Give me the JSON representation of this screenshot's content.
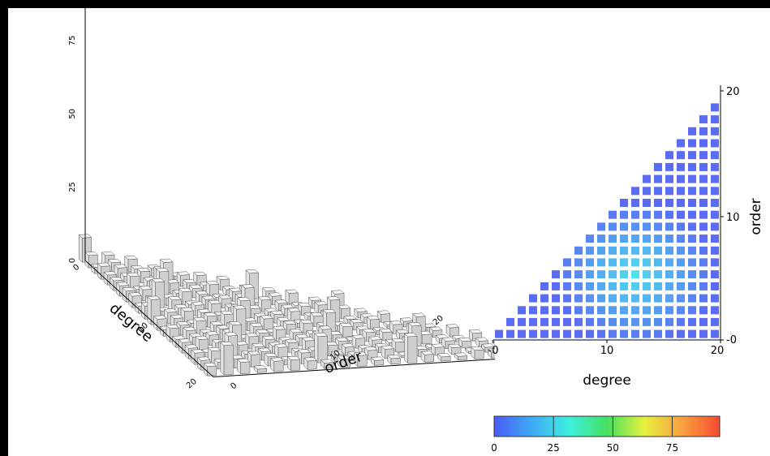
{
  "chart_data": [
    {
      "type": "bar3d",
      "xlabel": "degree",
      "ylabel": "order",
      "x_ticks": [
        "0",
        "10",
        "20"
      ],
      "y_ticks": [
        "0",
        "10",
        "20"
      ],
      "z_ticks": [
        "0",
        "25",
        "50",
        "75"
      ],
      "zlim": [
        0,
        90
      ],
      "bar_color": "#f0f0f0",
      "note": "lower-triangular grid of bars, order 0..degree, degree 0..20; heights mostly 2-8 with peaks up to ~20"
    },
    {
      "type": "heatmap",
      "xlabel": "degree",
      "ylabel": "order",
      "x_ticks": [
        "-0",
        "10",
        "20"
      ],
      "y_ticks": [
        "-0",
        "10",
        "20"
      ],
      "xlim": [
        0,
        20
      ],
      "ylim": [
        0,
        20
      ],
      "colorbar": {
        "ticks": [
          "0",
          "25",
          "50",
          "75"
        ],
        "range": [
          0,
          95
        ],
        "colors": [
          "#4a5cf5",
          "#3fa9f5",
          "#3df0e0",
          "#45e060",
          "#e8f040",
          "#f8a040",
          "#f84c30"
        ]
      },
      "cell_color_low": "#5a6cf4",
      "cell_color_high": "#4fe0ee"
    }
  ]
}
